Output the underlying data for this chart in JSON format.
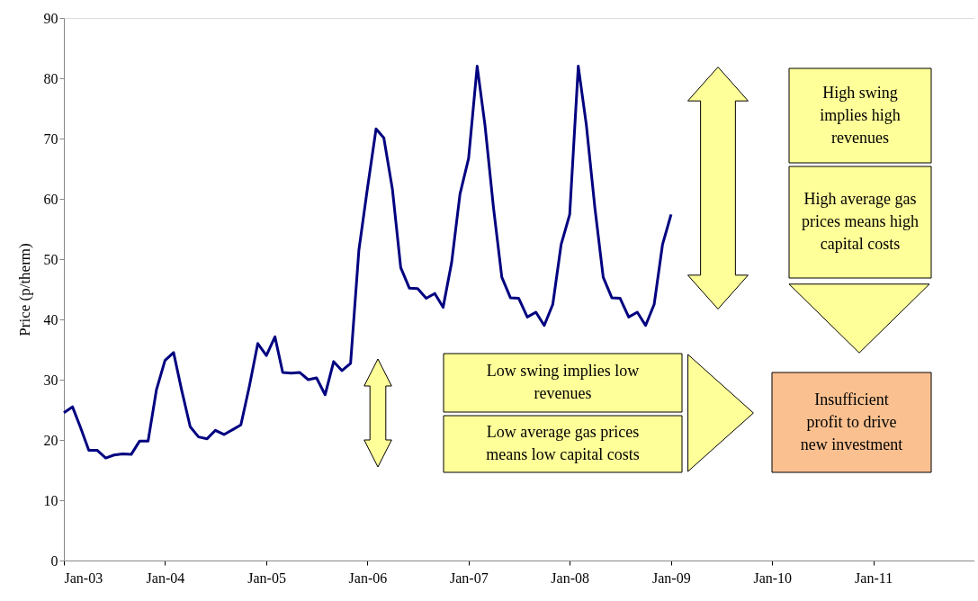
{
  "chart_data": {
    "type": "line",
    "ylabel": "Price (p/therm)",
    "x": [
      "2003-01",
      "2003-02",
      "2003-03",
      "2003-04",
      "2003-05",
      "2003-06",
      "2003-07",
      "2003-08",
      "2003-09",
      "2003-10",
      "2003-11",
      "2003-12",
      "2004-01",
      "2004-02",
      "2004-03",
      "2004-04",
      "2004-05",
      "2004-06",
      "2004-07",
      "2004-08",
      "2004-09",
      "2004-10",
      "2004-11",
      "2004-12",
      "2005-01",
      "2005-02",
      "2005-03",
      "2005-04",
      "2005-05",
      "2005-06",
      "2005-07",
      "2005-08",
      "2005-09",
      "2005-10",
      "2005-11",
      "2005-12",
      "2006-01",
      "2006-02",
      "2006-03",
      "2006-04",
      "2006-05",
      "2006-06",
      "2006-07",
      "2006-08",
      "2006-09",
      "2006-10",
      "2006-11",
      "2006-12",
      "2007-01",
      "2007-02",
      "2007-03",
      "2007-04",
      "2007-05",
      "2007-06",
      "2007-07",
      "2007-08",
      "2007-09",
      "2007-10",
      "2007-11",
      "2007-12",
      "2008-01",
      "2008-02",
      "2008-03",
      "2008-04",
      "2008-05",
      "2008-06",
      "2008-07",
      "2008-08",
      "2008-09",
      "2008-10",
      "2008-11",
      "2008-12",
      "2009-01"
    ],
    "series": [
      {
        "color": "#000080",
        "values": [
          24.5,
          25.5,
          22.2,
          18.3,
          18.3,
          17.0,
          17.5,
          17.7,
          17.6,
          19.8,
          19.8,
          28.3,
          33.2,
          34.5,
          28.3,
          22.2,
          20.5,
          20.2,
          21.6,
          20.9,
          21.7,
          22.5,
          29.0,
          36.0,
          34.0,
          37.1,
          31.2,
          31.1,
          31.2,
          30.0,
          30.3,
          27.5,
          33.0,
          31.5,
          32.7,
          51.5,
          61.8,
          71.6,
          70.1,
          61.6,
          48.6,
          45.2,
          45.1,
          43.5,
          44.3,
          42.0,
          49.5,
          60.8,
          66.7,
          82.0,
          72.3,
          58.5,
          47.0,
          43.6,
          43.5,
          40.4,
          41.2,
          39.0,
          42.5,
          52.4,
          57.4,
          82.0,
          72.3,
          58.5,
          47.0,
          43.6,
          43.5,
          40.4,
          41.2,
          39.0,
          42.5,
          52.4,
          57.4
        ]
      }
    ],
    "xlim": [
      "2003-01",
      "2012-01"
    ],
    "xticks": [
      {
        "value": "2003-01",
        "label": "Jan-03"
      },
      {
        "value": "2004-01",
        "label": "Jan-04"
      },
      {
        "value": "2005-01",
        "label": "Jan-05"
      },
      {
        "value": "2006-01",
        "label": "Jan-06"
      },
      {
        "value": "2007-01",
        "label": "Jan-07"
      },
      {
        "value": "2008-01",
        "label": "Jan-08"
      },
      {
        "value": "2009-01",
        "label": "Jan-09"
      },
      {
        "value": "2010-01",
        "label": "Jan-10"
      },
      {
        "value": "2011-01",
        "label": "Jan-11"
      }
    ],
    "ylim": [
      0,
      90
    ],
    "yticks": [
      0,
      10,
      20,
      30,
      40,
      50,
      60,
      70,
      80,
      90
    ],
    "grid": false,
    "marker": "none",
    "line_style": "solid",
    "annotations": [
      "High swing implies high revenues",
      "High average gas prices means high capital costs",
      "Low swing implies low revenues",
      "Low average gas prices means low capital costs",
      "Insufficient profit to drive new investment"
    ]
  }
}
